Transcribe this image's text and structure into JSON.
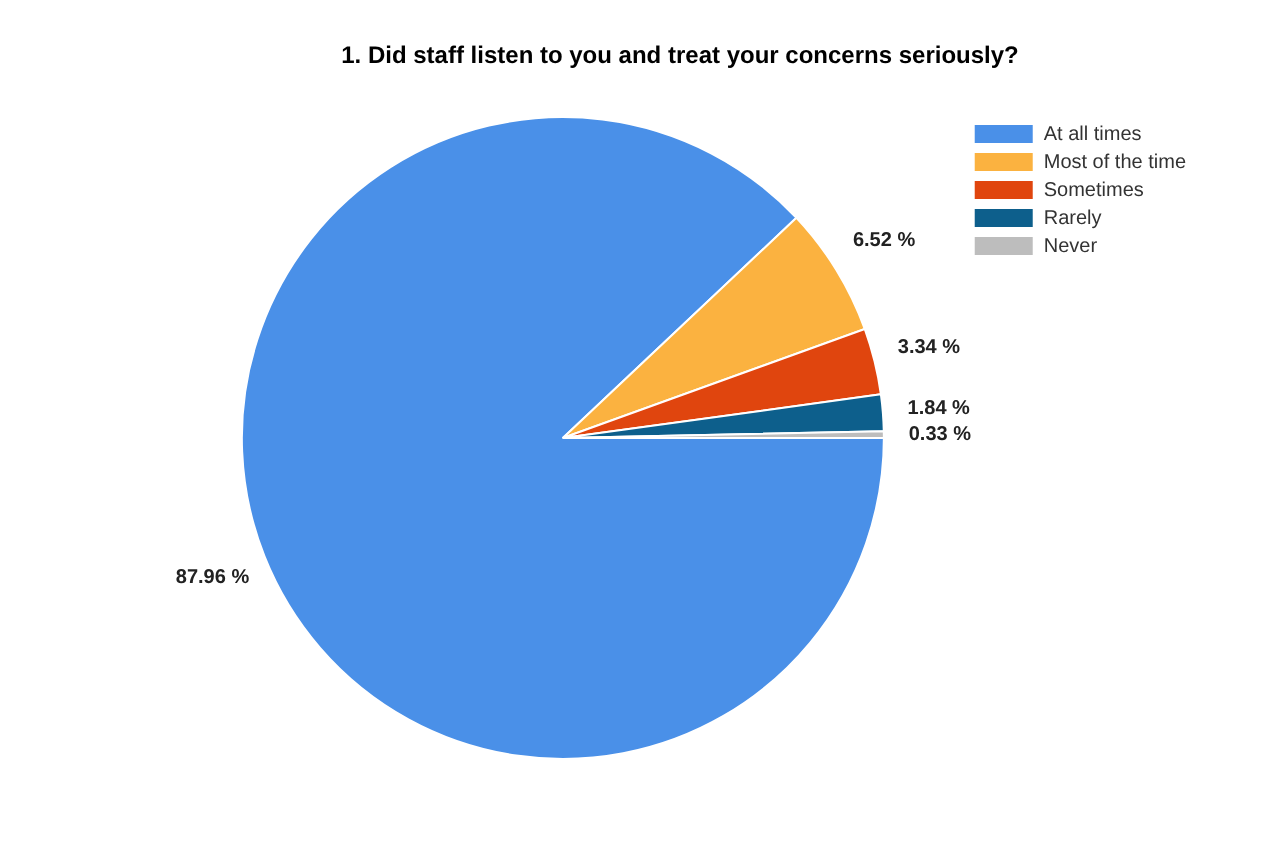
{
  "chart_data": {
    "type": "pie",
    "title": "1. Did staff listen to you and treat your concerns seriously?",
    "categories": [
      "At all times",
      "Most of the time",
      "Sometimes",
      "Rarely",
      "Never"
    ],
    "values": [
      87.96,
      6.52,
      3.34,
      1.84,
      0.33
    ],
    "colors": [
      "#4a90e8",
      "#fbb240",
      "#e0450e",
      "#0d5f8c",
      "#bdbdbd"
    ],
    "value_labels": [
      "87.96 %",
      "6.52 %",
      "3.34 %",
      "1.84 %",
      "0.33 %"
    ],
    "legend": "top right"
  }
}
